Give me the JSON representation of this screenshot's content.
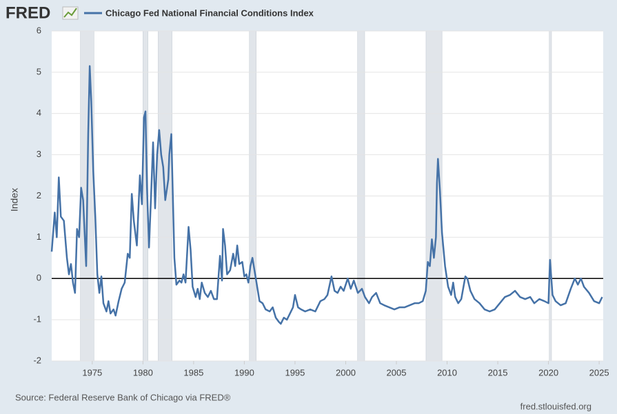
{
  "chart_data": {
    "type": "line",
    "brand": "FRED",
    "ylabel": "Index",
    "source": "Source: Federal Reserve Bank of Chicago via FRED®",
    "site": "fred.stlouisfed.org",
    "xlim": [
      1971,
      2025.4
    ],
    "xticks": [
      1975,
      1980,
      1985,
      1990,
      1995,
      2000,
      2005,
      2010,
      2015,
      2020,
      2025
    ],
    "ylim": [
      -2,
      6
    ],
    "yticks": [
      -2,
      -1,
      0,
      1,
      2,
      3,
      4,
      5,
      6
    ],
    "grid": true,
    "recessions": [
      [
        1973.83,
        1975.17
      ],
      [
        1980.0,
        1980.5
      ],
      [
        1981.5,
        1982.87
      ],
      [
        1990.5,
        1991.17
      ],
      [
        2001.17,
        2001.87
      ],
      [
        2007.92,
        2009.5
      ],
      [
        2020.08,
        2020.3
      ]
    ],
    "x": [
      1971.0,
      1971.3,
      1971.5,
      1971.7,
      1971.9,
      1972.2,
      1972.5,
      1972.7,
      1972.9,
      1973.1,
      1973.3,
      1973.5,
      1973.7,
      1973.9,
      1974.1,
      1974.4,
      1974.6,
      1974.75,
      1974.9,
      1975.1,
      1975.3,
      1975.5,
      1975.7,
      1975.9,
      1976.1,
      1976.4,
      1976.6,
      1976.8,
      1977.1,
      1977.3,
      1977.6,
      1977.9,
      1978.2,
      1978.5,
      1978.7,
      1978.9,
      1979.1,
      1979.4,
      1979.7,
      1979.9,
      1980.1,
      1980.25,
      1980.4,
      1980.6,
      1980.8,
      1981.0,
      1981.2,
      1981.4,
      1981.6,
      1981.8,
      1982.0,
      1982.2,
      1982.5,
      1982.6,
      1982.8,
      1982.9,
      1983.1,
      1983.3,
      1983.6,
      1983.8,
      1984.0,
      1984.2,
      1984.5,
      1984.7,
      1984.9,
      1985.2,
      1985.4,
      1985.6,
      1985.8,
      1986.1,
      1986.4,
      1986.7,
      1987.0,
      1987.3,
      1987.6,
      1987.8,
      1987.9,
      1988.1,
      1988.3,
      1988.6,
      1988.9,
      1989.1,
      1989.3,
      1989.5,
      1989.8,
      1990.0,
      1990.2,
      1990.4,
      1990.6,
      1990.8,
      1991.0,
      1991.2,
      1991.5,
      1991.8,
      1992.1,
      1992.5,
      1992.8,
      1993.1,
      1993.4,
      1993.6,
      1993.9,
      1994.2,
      1994.5,
      1994.8,
      1995.0,
      1995.3,
      1995.6,
      1996.0,
      1996.5,
      1997.0,
      1997.5,
      1997.9,
      1998.2,
      1998.6,
      1998.9,
      1999.2,
      1999.5,
      1999.8,
      2000.2,
      2000.5,
      2000.8,
      2001.2,
      2001.6,
      2001.9,
      2002.3,
      2002.6,
      2003.0,
      2003.4,
      2003.8,
      2004.3,
      2004.8,
      2005.3,
      2005.8,
      2006.3,
      2006.8,
      2007.2,
      2007.6,
      2007.9,
      2008.1,
      2008.3,
      2008.5,
      2008.7,
      2008.9,
      2009.0,
      2009.1,
      2009.3,
      2009.5,
      2009.8,
      2010.1,
      2010.4,
      2010.6,
      2010.8,
      2011.1,
      2011.4,
      2011.8,
      2012.0,
      2012.3,
      2012.7,
      2013.2,
      2013.7,
      2014.2,
      2014.7,
      2015.2,
      2015.7,
      2016.2,
      2016.7,
      2017.2,
      2017.7,
      2018.2,
      2018.6,
      2019.1,
      2019.6,
      2020.0,
      2020.15,
      2020.4,
      2020.7,
      2021.2,
      2021.7,
      2022.2,
      2022.6,
      2022.9,
      2023.2,
      2023.5,
      2024.0,
      2024.5,
      2025.0,
      2025.3
    ],
    "series": [
      {
        "name": "Chicago Fed National Financial Conditions Index",
        "color": "#4572a7",
        "values": [
          0.65,
          1.6,
          1.0,
          2.45,
          1.5,
          1.4,
          0.5,
          0.1,
          0.35,
          -0.1,
          -0.35,
          1.2,
          1.0,
          2.2,
          1.9,
          0.3,
          3.5,
          5.15,
          4.3,
          2.6,
          1.5,
          0.1,
          -0.35,
          0.05,
          -0.6,
          -0.8,
          -0.55,
          -0.85,
          -0.75,
          -0.9,
          -0.55,
          -0.25,
          -0.1,
          0.6,
          0.5,
          2.05,
          1.4,
          0.8,
          2.5,
          1.8,
          3.9,
          4.05,
          2.2,
          0.75,
          2.0,
          3.3,
          1.7,
          3.0,
          3.6,
          3.0,
          2.7,
          1.9,
          2.4,
          3.0,
          3.5,
          2.5,
          0.5,
          -0.15,
          -0.05,
          -0.1,
          0.1,
          -0.1,
          1.25,
          0.7,
          -0.2,
          -0.45,
          -0.25,
          -0.5,
          -0.1,
          -0.35,
          -0.45,
          -0.3,
          -0.5,
          -0.5,
          0.55,
          -0.05,
          1.2,
          0.8,
          0.1,
          0.2,
          0.6,
          0.3,
          0.8,
          0.35,
          0.4,
          0.05,
          0.1,
          -0.1,
          0.3,
          0.5,
          0.2,
          -0.1,
          -0.55,
          -0.6,
          -0.75,
          -0.8,
          -0.7,
          -0.95,
          -1.05,
          -1.1,
          -0.95,
          -1.0,
          -0.85,
          -0.7,
          -0.4,
          -0.7,
          -0.75,
          -0.8,
          -0.75,
          -0.8,
          -0.55,
          -0.5,
          -0.4,
          0.05,
          -0.3,
          -0.35,
          -0.2,
          -0.3,
          0.0,
          -0.25,
          -0.05,
          -0.35,
          -0.25,
          -0.45,
          -0.6,
          -0.45,
          -0.35,
          -0.6,
          -0.65,
          -0.7,
          -0.75,
          -0.7,
          -0.7,
          -0.65,
          -0.6,
          -0.6,
          -0.55,
          -0.3,
          0.4,
          0.3,
          0.95,
          0.5,
          1.0,
          2.3,
          2.9,
          2.1,
          1.1,
          0.3,
          -0.2,
          -0.4,
          -0.1,
          -0.45,
          -0.6,
          -0.5,
          0.05,
          0.0,
          -0.3,
          -0.5,
          -0.6,
          -0.75,
          -0.8,
          -0.75,
          -0.6,
          -0.45,
          -0.4,
          -0.3,
          -0.45,
          -0.5,
          -0.45,
          -0.6,
          -0.5,
          -0.55,
          -0.6,
          0.45,
          -0.4,
          -0.55,
          -0.65,
          -0.6,
          -0.25,
          0.0,
          -0.15,
          0.0,
          -0.2,
          -0.35,
          -0.55,
          -0.6,
          -0.45
        ]
      }
    ]
  }
}
